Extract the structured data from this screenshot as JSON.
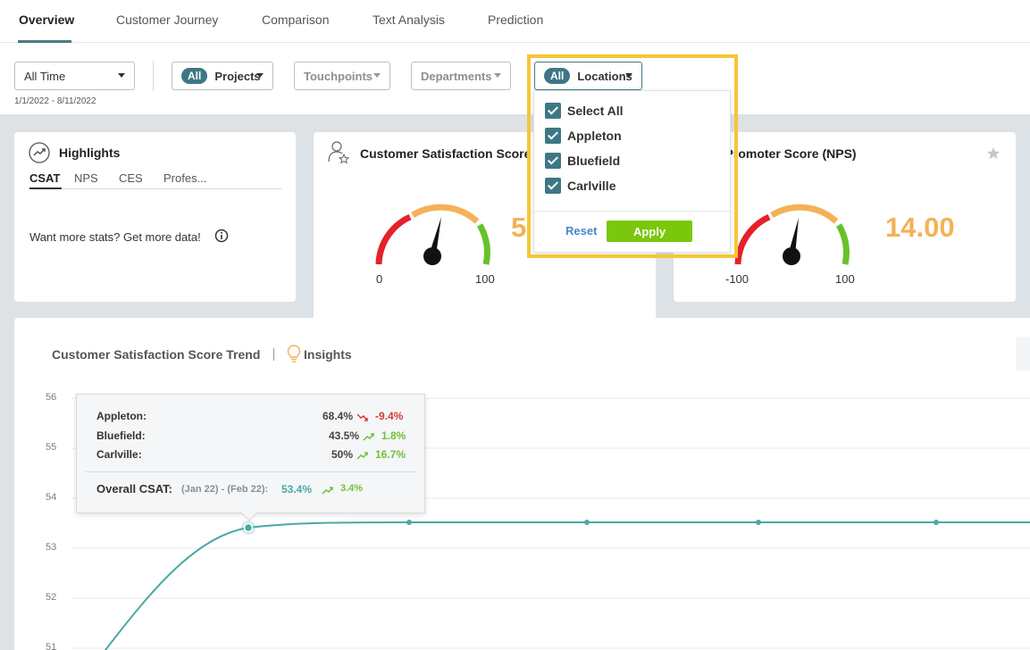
{
  "tabs": [
    {
      "label": "Overview",
      "active": true
    },
    {
      "label": "Customer Journey"
    },
    {
      "label": "Comparison"
    },
    {
      "label": "Text Analysis"
    },
    {
      "label": "Prediction"
    }
  ],
  "filters": {
    "time": "All Time",
    "date_range": "1/1/2022 - 8/11/2022",
    "projects": {
      "badge": "All",
      "label": "Projects"
    },
    "touchpoints": "Touchpoints",
    "departments": "Departments",
    "locations": {
      "badge": "All",
      "label": "Locations"
    }
  },
  "locations_dropdown": {
    "items": [
      {
        "label": "Select All",
        "checked": true
      },
      {
        "label": "Appleton",
        "checked": true
      },
      {
        "label": "Bluefield",
        "checked": true
      },
      {
        "label": "Carlville",
        "checked": true
      }
    ],
    "reset_label": "Reset",
    "apply_label": "Apply",
    "highlight_color": "#f6c637"
  },
  "highlights": {
    "title": "Highlights",
    "tabs": [
      "CSAT",
      "NPS",
      "CES",
      "Profes..."
    ],
    "message": "Want more stats? Get more data!"
  },
  "csat_card": {
    "title": "Customer Satisfaction Score",
    "score_visible": "5",
    "min": "0",
    "max": "100"
  },
  "nps_card": {
    "title_visible": "t Promoter Score (NPS)",
    "score": "14.00",
    "min": "-100",
    "max": "100"
  },
  "trend": {
    "title": "Customer Satisfaction Score Trend",
    "insights_label": "Insights",
    "y_ticks": [
      "56",
      "55",
      "54",
      "53",
      "52",
      "51"
    ]
  },
  "tooltip": {
    "rows": [
      {
        "name": "Appleton:",
        "value": "68.4%",
        "delta": "-9.4%",
        "direction": "down"
      },
      {
        "name": "Bluefield:",
        "value": "43.5%",
        "delta": "1.8%",
        "direction": "up"
      },
      {
        "name": "Carlville:",
        "value": "50%",
        "delta": "16.7%",
        "direction": "up"
      }
    ],
    "overall_label": "Overall CSAT:",
    "overall_period": "(Jan 22) - (Feb 22):",
    "overall_value": "53.4%",
    "overall_delta": "3.4%"
  },
  "colors": {
    "accent": "#3e7784",
    "line": "#4aa9a3",
    "score_orange": "#f4b157",
    "apply_green": "#7ac70c"
  }
}
